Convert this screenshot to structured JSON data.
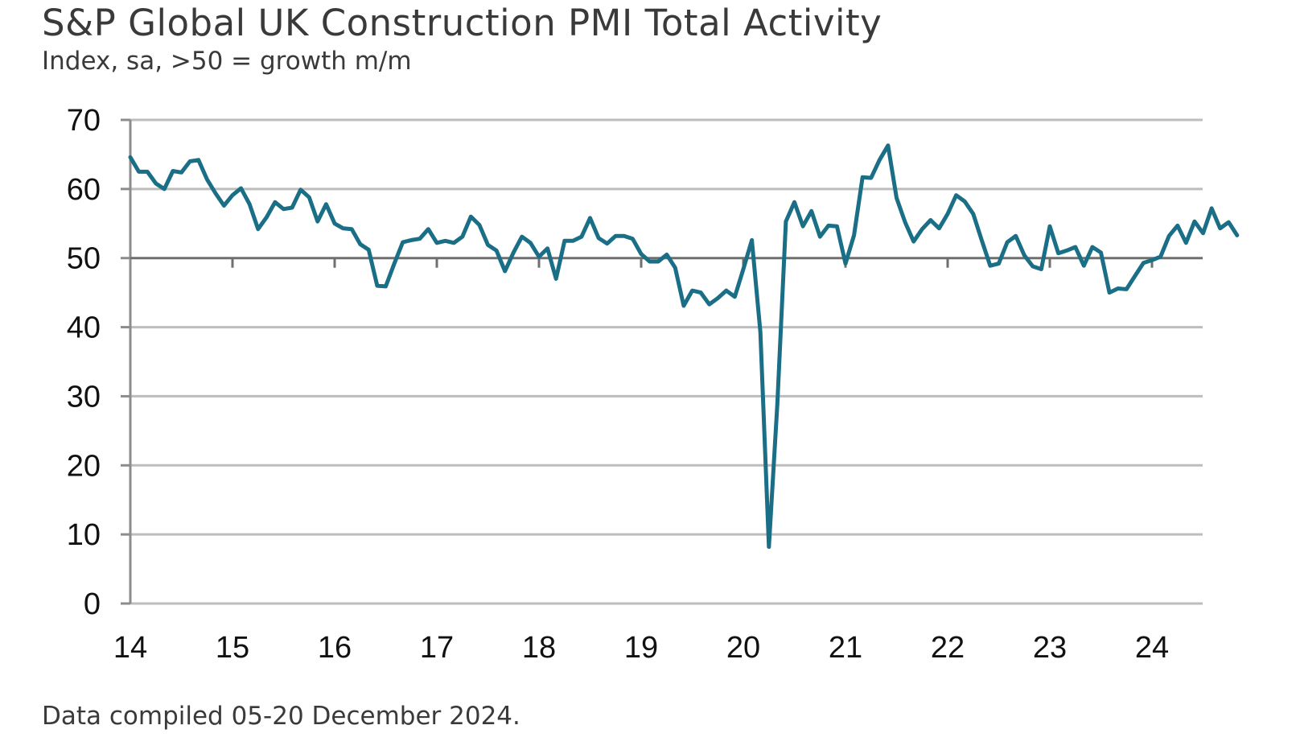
{
  "title": "S&P Global UK Construction PMI Total Activity",
  "subtitle": "Index, sa, >50 = growth m/m",
  "footnote": "Data compiled 05-20 December 2024.",
  "colors": {
    "line": "#1a6f86",
    "grid": "#bdbdbd",
    "axis": "#8c8c8c"
  },
  "chart_data": {
    "type": "line",
    "title": "S&P Global UK Construction PMI Total Activity",
    "subtitle": "Index, sa, >50 = growth m/m",
    "xlabel": "",
    "ylabel": "",
    "ylim": [
      0,
      70
    ],
    "yticks": [
      0,
      10,
      20,
      30,
      40,
      50,
      60,
      70
    ],
    "xtick_labels": [
      "14",
      "15",
      "16",
      "17",
      "18",
      "19",
      "20",
      "21",
      "22",
      "23",
      "24"
    ],
    "grid": true,
    "series": [
      {
        "values": [
          64.6,
          62.5,
          62.5,
          60.8,
          60.0,
          62.6,
          62.4,
          64.0,
          64.2,
          61.4,
          59.4,
          57.6,
          59.1,
          60.1,
          57.8,
          54.2,
          55.9,
          58.1,
          57.1,
          57.3,
          59.9,
          58.8,
          55.3,
          57.8,
          55.0,
          54.3,
          54.2,
          52.0,
          51.2,
          46.0,
          45.9,
          49.2,
          52.3,
          52.6,
          52.8,
          54.2,
          52.2,
          52.5,
          52.2,
          53.1,
          56.0,
          54.8,
          51.9,
          51.1,
          48.1,
          50.8,
          53.1,
          52.2,
          50.2,
          51.4,
          47.0,
          52.5,
          52.5,
          53.1,
          55.8,
          52.9,
          52.1,
          53.2,
          53.2,
          52.8,
          50.6,
          49.5,
          49.5,
          50.5,
          48.6,
          43.1,
          45.3,
          45.0,
          43.3,
          44.2,
          45.3,
          44.4,
          48.4,
          52.6,
          39.3,
          8.2,
          28.9,
          55.3,
          58.1,
          54.6,
          56.8,
          53.1,
          54.7,
          54.6,
          49.2,
          53.3,
          61.7,
          61.6,
          64.2,
          66.3,
          58.7,
          55.2,
          52.4,
          54.2,
          55.5,
          54.3,
          56.4,
          59.1,
          58.2,
          56.4,
          52.6,
          48.9,
          49.2,
          52.3,
          53.2,
          50.4,
          48.8,
          48.4,
          54.6,
          50.7,
          51.1,
          51.6,
          48.9,
          51.6,
          50.8,
          45.0,
          45.6,
          45.5,
          47.4,
          49.3,
          49.7,
          50.2,
          53.2,
          54.7,
          52.2,
          55.3,
          53.6,
          57.2,
          54.3,
          55.2,
          53.3
        ]
      }
    ]
  }
}
